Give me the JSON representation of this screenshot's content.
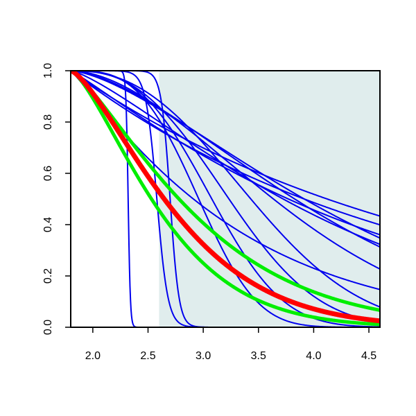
{
  "chart_data": {
    "type": "line",
    "title": "",
    "xlabel": "",
    "ylabel": "",
    "xlim": [
      1.8,
      4.6
    ],
    "ylim": [
      0,
      1
    ],
    "x_ticks": [
      "2.0",
      "2.5",
      "3.0",
      "3.5",
      "4.0",
      "4.5"
    ],
    "y_ticks": [
      "0.0",
      "0.2",
      "0.4",
      "0.6",
      "0.8",
      "1.0"
    ],
    "grid": false,
    "legend": "none",
    "shaded_region": {
      "x_from": 2.6,
      "x_to": 4.6,
      "color": "#e0eded"
    },
    "colors": {
      "thin": "#0000ee",
      "red": "#ff0000",
      "green": "#00ee00"
    },
    "curves": {
      "steep_blue": [
        {
          "x": 2.32,
          "w": 0.01
        },
        {
          "x": 2.58,
          "w": 0.05
        },
        {
          "x": 2.7,
          "w": 0.04
        }
      ],
      "weibull_blue": [
        {
          "x0": 1.8,
          "k": 3.2,
          "lam": 1.3
        },
        {
          "x0": 1.8,
          "k": 2.9,
          "lam": 1.45
        },
        {
          "x0": 1.8,
          "k": 2.6,
          "lam": 1.65
        },
        {
          "x0": 1.8,
          "k": 2.4,
          "lam": 1.9
        },
        {
          "x0": 1.8,
          "k": 1.8,
          "lam": 2.25
        },
        {
          "x0": 1.8,
          "k": 1.6,
          "lam": 2.55
        },
        {
          "x0": 1.8,
          "k": 1.5,
          "lam": 2.7
        },
        {
          "x0": 1.8,
          "k": 1.3,
          "lam": 2.55
        },
        {
          "x0": 1.8,
          "k": 1.1,
          "lam": 2.75
        },
        {
          "x0": 1.8,
          "k": 1.0,
          "lam": 3.05
        },
        {
          "x0": 1.8,
          "k": 1.0,
          "lam": 3.35
        },
        {
          "x0": 1.8,
          "k": 1.1,
          "lam": 1.55
        }
      ],
      "red": {
        "x0": 1.8,
        "k": 1.4,
        "lam": 1.1
      },
      "green": [
        {
          "x0": 1.8,
          "k": 1.3,
          "lam": 1.3
        },
        {
          "x0": 1.8,
          "k": 1.4,
          "lam": 0.95
        }
      ]
    }
  }
}
